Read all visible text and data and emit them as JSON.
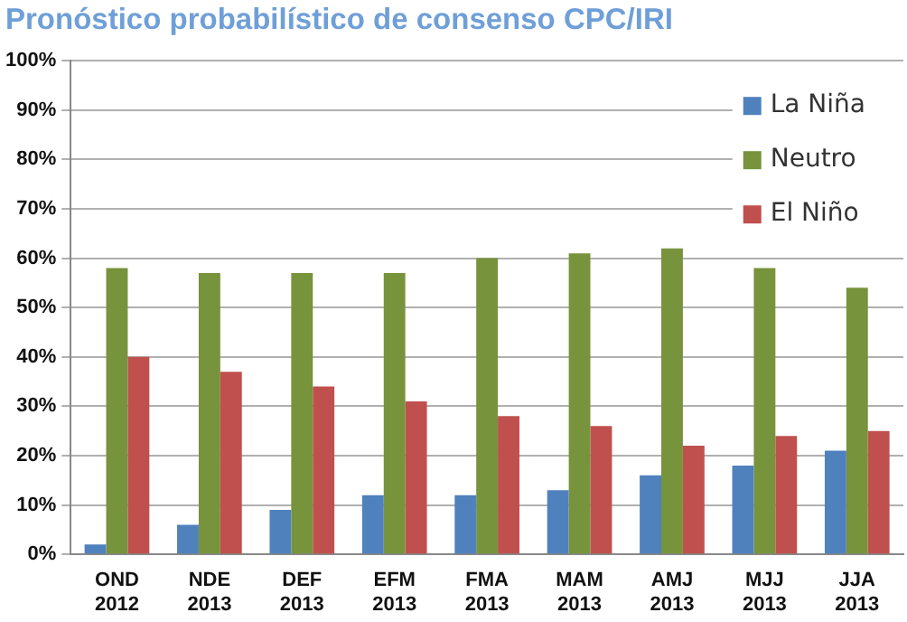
{
  "chart_data": {
    "type": "bar",
    "title": "Pronóstico probabilístico de consenso CPC/IRI",
    "categories": [
      "OND\n2012",
      "NDE\n2013",
      "DEF\n2013",
      "EFM\n2013",
      "FMA\n2013",
      "MAM\n2013",
      "AMJ\n2013",
      "MJJ\n2013",
      "JJA\n2013"
    ],
    "series": [
      {
        "name": "La Niña",
        "color": "#4f81bd",
        "values": [
          2,
          6,
          9,
          12,
          12,
          13,
          16,
          18,
          21
        ]
      },
      {
        "name": "Neutro",
        "color": "#77933c",
        "values": [
          58,
          57,
          57,
          57,
          60,
          61,
          62,
          58,
          54
        ]
      },
      {
        "name": "El Niño",
        "color": "#c0504d",
        "values": [
          40,
          37,
          34,
          31,
          28,
          26,
          22,
          24,
          25
        ]
      }
    ],
    "ylim": [
      0,
      100
    ],
    "yticks": [
      {
        "value": 0,
        "label": "0%"
      },
      {
        "value": 10,
        "label": "10%"
      },
      {
        "value": 20,
        "label": "20%"
      },
      {
        "value": 30,
        "label": "30%"
      },
      {
        "value": 40,
        "label": "40%"
      },
      {
        "value": 50,
        "label": "50%"
      },
      {
        "value": 60,
        "label": "60%"
      },
      {
        "value": 70,
        "label": "70%"
      },
      {
        "value": 80,
        "label": "80%"
      },
      {
        "value": 90,
        "label": "90%"
      },
      {
        "value": 100,
        "label": "100%"
      }
    ],
    "grid": "y",
    "legend": "top right"
  }
}
